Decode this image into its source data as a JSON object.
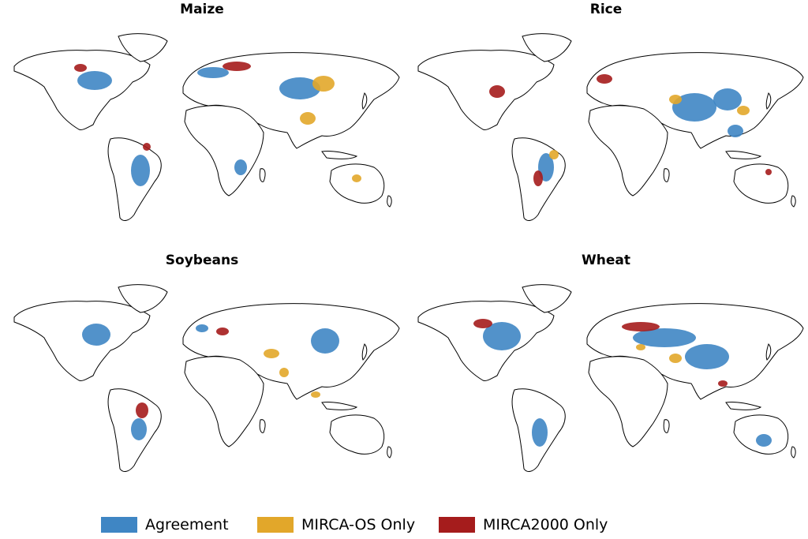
{
  "panels": [
    {
      "title": "Maize"
    },
    {
      "title": "Rice"
    },
    {
      "title": "Soybeans"
    },
    {
      "title": "Wheat"
    }
  ],
  "legend": [
    {
      "label": "Agreement",
      "color": "#3f86c4"
    },
    {
      "label": "MIRCA-OS Only",
      "color": "#e2a72a"
    },
    {
      "label": "MIRCA2000 Only",
      "color": "#a51c1c"
    }
  ],
  "style": {
    "outline": "#000000",
    "land": "#ffffff"
  }
}
